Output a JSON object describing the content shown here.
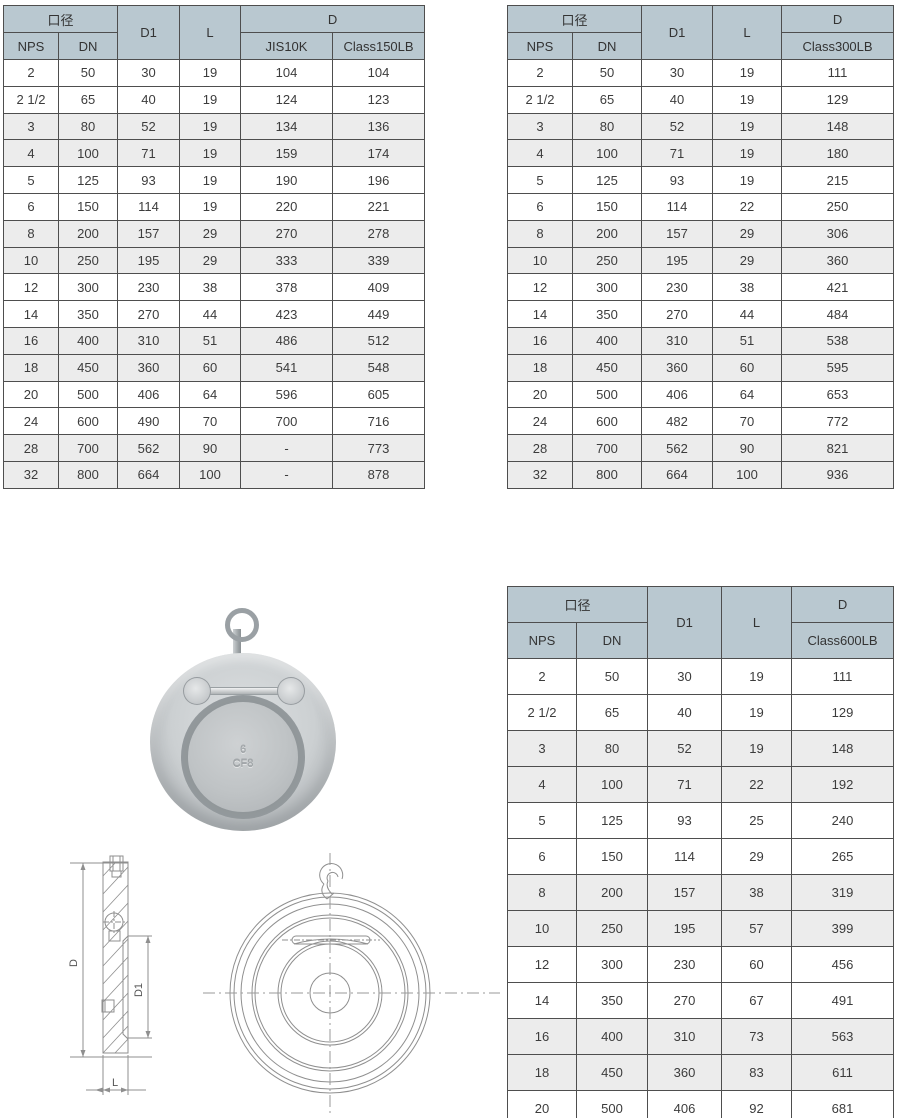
{
  "colors": {
    "header_bg": "#b9c8d0",
    "row_alt_bg": "#ececec",
    "table_border": "#4e4e4e",
    "drawing_line": "#8f8f8f"
  },
  "tables": [
    {
      "name": "dims-jis10k-class150lb",
      "col_headers": {
        "bore": "口径",
        "nps": "NPS",
        "dn": "DN",
        "d1": "D1",
        "l": "L",
        "d": "D"
      },
      "d_subcols": [
        "JIS10K",
        "Class150LB"
      ],
      "rows": [
        [
          "2",
          "50",
          "30",
          "19",
          "104",
          "104"
        ],
        [
          "2 1/2",
          "65",
          "40",
          "19",
          "124",
          "123"
        ],
        [
          "3",
          "80",
          "52",
          "19",
          "134",
          "136"
        ],
        [
          "4",
          "100",
          "71",
          "19",
          "159",
          "174"
        ],
        [
          "5",
          "125",
          "93",
          "19",
          "190",
          "196"
        ],
        [
          "6",
          "150",
          "114",
          "19",
          "220",
          "221"
        ],
        [
          "8",
          "200",
          "157",
          "29",
          "270",
          "278"
        ],
        [
          "10",
          "250",
          "195",
          "29",
          "333",
          "339"
        ],
        [
          "12",
          "300",
          "230",
          "38",
          "378",
          "409"
        ],
        [
          "14",
          "350",
          "270",
          "44",
          "423",
          "449"
        ],
        [
          "16",
          "400",
          "310",
          "51",
          "486",
          "512"
        ],
        [
          "18",
          "450",
          "360",
          "60",
          "541",
          "548"
        ],
        [
          "20",
          "500",
          "406",
          "64",
          "596",
          "605"
        ],
        [
          "24",
          "600",
          "490",
          "70",
          "700",
          "716"
        ],
        [
          "28",
          "700",
          "562",
          "90",
          "-",
          "773"
        ],
        [
          "32",
          "800",
          "664",
          "100",
          "-",
          "878"
        ]
      ]
    },
    {
      "name": "dims-class300lb",
      "col_headers": {
        "bore": "口径",
        "nps": "NPS",
        "dn": "DN",
        "d1": "D1",
        "l": "L",
        "d": "D"
      },
      "d_subcols": [
        "Class300LB"
      ],
      "rows": [
        [
          "2",
          "50",
          "30",
          "19",
          "111"
        ],
        [
          "2 1/2",
          "65",
          "40",
          "19",
          "129"
        ],
        [
          "3",
          "80",
          "52",
          "19",
          "148"
        ],
        [
          "4",
          "100",
          "71",
          "19",
          "180"
        ],
        [
          "5",
          "125",
          "93",
          "19",
          "215"
        ],
        [
          "6",
          "150",
          "114",
          "22",
          "250"
        ],
        [
          "8",
          "200",
          "157",
          "29",
          "306"
        ],
        [
          "10",
          "250",
          "195",
          "29",
          "360"
        ],
        [
          "12",
          "300",
          "230",
          "38",
          "421"
        ],
        [
          "14",
          "350",
          "270",
          "44",
          "484"
        ],
        [
          "16",
          "400",
          "310",
          "51",
          "538"
        ],
        [
          "18",
          "450",
          "360",
          "60",
          "595"
        ],
        [
          "20",
          "500",
          "406",
          "64",
          "653"
        ],
        [
          "24",
          "600",
          "482",
          "70",
          "772"
        ],
        [
          "28",
          "700",
          "562",
          "90",
          "821"
        ],
        [
          "32",
          "800",
          "664",
          "100",
          "936"
        ]
      ]
    },
    {
      "name": "dims-class600lb",
      "col_headers": {
        "bore": "口径",
        "nps": "NPS",
        "dn": "DN",
        "d1": "D1",
        "l": "L",
        "d": "D"
      },
      "d_subcols": [
        "Class600LB"
      ],
      "rows": [
        [
          "2",
          "50",
          "30",
          "19",
          "111"
        ],
        [
          "2 1/2",
          "65",
          "40",
          "19",
          "129"
        ],
        [
          "3",
          "80",
          "52",
          "19",
          "148"
        ],
        [
          "4",
          "100",
          "71",
          "22",
          "192"
        ],
        [
          "5",
          "125",
          "93",
          "25",
          "240"
        ],
        [
          "6",
          "150",
          "114",
          "29",
          "265"
        ],
        [
          "8",
          "200",
          "157",
          "38",
          "319"
        ],
        [
          "10",
          "250",
          "195",
          "57",
          "399"
        ],
        [
          "12",
          "300",
          "230",
          "60",
          "456"
        ],
        [
          "14",
          "350",
          "270",
          "67",
          "491"
        ],
        [
          "16",
          "400",
          "310",
          "73",
          "563"
        ],
        [
          "18",
          "450",
          "360",
          "83",
          "611"
        ],
        [
          "20",
          "500",
          "406",
          "92",
          "681"
        ]
      ]
    }
  ],
  "photo": {
    "disc_mark_line1": "6",
    "disc_mark_line2": "CF8"
  },
  "drawing_labels": {
    "d": "D",
    "d1": "D1",
    "l": "L"
  }
}
